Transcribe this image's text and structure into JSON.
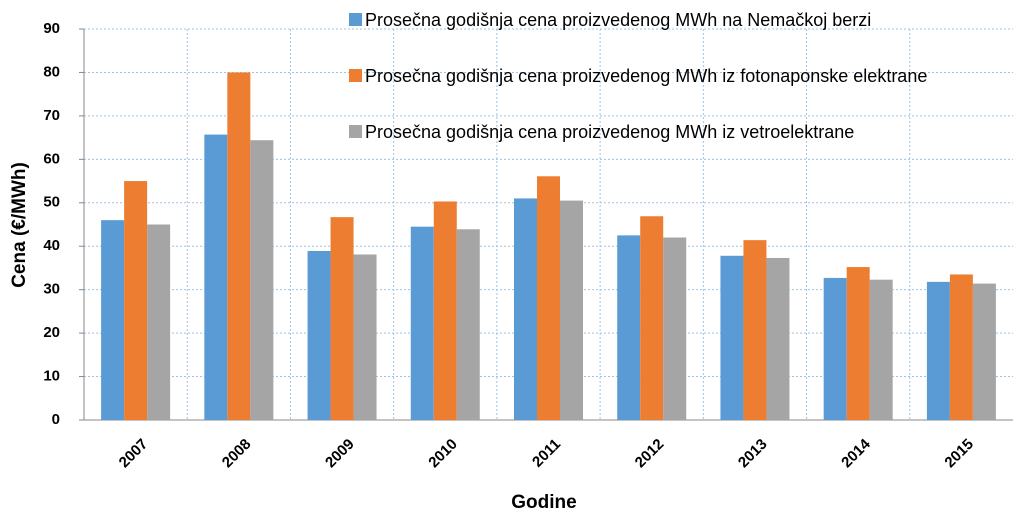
{
  "chart_data": {
    "type": "bar",
    "categories": [
      "2007",
      "2008",
      "2009",
      "2010",
      "2011",
      "2012",
      "2013",
      "2014",
      "2015"
    ],
    "series": [
      {
        "name": "Prosečna godišnja cena proizvedenog MWh na Nemačkoj berzi",
        "color": "#5b9bd5",
        "values": [
          46,
          65.7,
          38.9,
          44.5,
          51,
          42.5,
          37.8,
          32.7,
          31.8
        ]
      },
      {
        "name": "Prosečna godišnja cena proizvedenog MWh iz fotonaponske elektrane",
        "color": "#ed7d31",
        "values": [
          55,
          80,
          46.7,
          50.3,
          56.1,
          46.9,
          41.4,
          35.2,
          33.5
        ]
      },
      {
        "name": "Prosečna godišnja cena proizvedenog MWh iz vetroelektrane",
        "color": "#a5a5a5",
        "values": [
          45,
          64.4,
          38.1,
          43.9,
          50.5,
          42,
          37.3,
          32.3,
          31.4
        ]
      }
    ],
    "xlabel": "Godine",
    "ylabel": "Cena (€/MWh)",
    "ylim": [
      0,
      90
    ],
    "yticks": [
      0,
      10,
      20,
      30,
      40,
      50,
      60,
      70,
      80,
      90
    ],
    "grid": true
  }
}
